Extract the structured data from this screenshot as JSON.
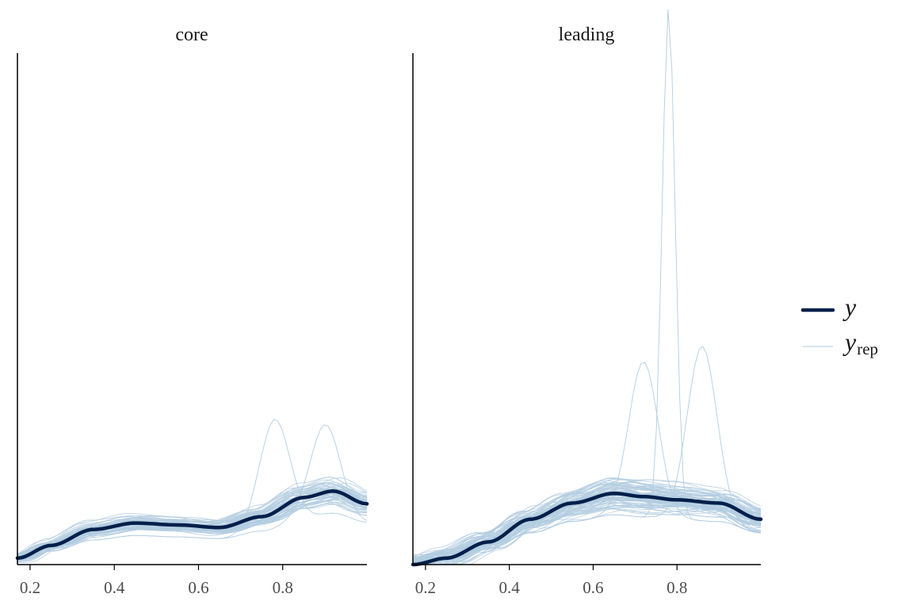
{
  "chart_data": {
    "type": "line",
    "xlim": [
      0.17,
      1.0
    ],
    "xticks": [
      "0.2",
      "0.4",
      "0.6",
      "0.8"
    ],
    "xtick_values": [
      0.2,
      0.4,
      0.6,
      0.8
    ],
    "grid": false,
    "legend_position": "right",
    "colors": {
      "y": "#011f4b",
      "yrep": "#b3cde0"
    },
    "legend": [
      {
        "key": "y",
        "label": "y",
        "sub": ""
      },
      {
        "key": "yrep",
        "label": "y",
        "sub": "rep"
      }
    ],
    "panels": [
      {
        "title": "core",
        "ylim": [
          0,
          8
        ],
        "y": {
          "x": [
            0.17,
            0.25,
            0.35,
            0.45,
            0.55,
            0.65,
            0.75,
            0.85,
            0.92,
            1.0
          ],
          "values": [
            0.1,
            0.3,
            0.55,
            0.65,
            0.62,
            0.58,
            0.75,
            1.05,
            1.15,
            0.95
          ]
        },
        "yrep_peaks": [
          {
            "x": 0.78,
            "values_peak": 1.7
          },
          {
            "x": 0.9,
            "values_peak": 1.4
          }
        ]
      },
      {
        "title": "leading",
        "ylim": [
          0,
          7.9
        ],
        "y": {
          "x": [
            0.17,
            0.25,
            0.35,
            0.45,
            0.55,
            0.65,
            0.72,
            0.8,
            0.9,
            1.0
          ],
          "values": [
            0.0,
            0.1,
            0.35,
            0.7,
            0.95,
            1.1,
            1.05,
            1.0,
            0.95,
            0.7
          ]
        },
        "yrep_peaks": [
          {
            "x": 0.78,
            "values_peak": 7.9
          },
          {
            "x": 0.86,
            "values_peak": 2.7
          },
          {
            "x": 0.72,
            "values_peak": 2.4
          }
        ]
      }
    ]
  }
}
